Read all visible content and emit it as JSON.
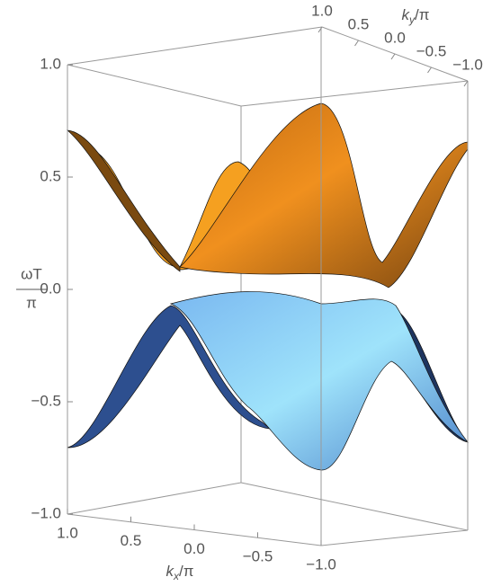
{
  "chart_data": {
    "type": "surface3d",
    "zlabel": {
      "numerator": "ωT",
      "denominator": "π"
    },
    "xlabel": {
      "symbol": "k",
      "subscript": "x",
      "suffix": "/π"
    },
    "ylabel": {
      "symbol": "k",
      "subscript": "y",
      "suffix": "/π"
    },
    "xlim": [
      1,
      -1
    ],
    "xticks": [
      {
        "value": 1,
        "label": "1.0"
      },
      {
        "value": 0.5,
        "label": "0.5"
      },
      {
        "value": 0,
        "label": "0.0"
      },
      {
        "value": -0.5,
        "label": "−0.5"
      },
      {
        "value": -1,
        "label": "−1.0"
      }
    ],
    "ylim": [
      1,
      -1
    ],
    "yticks": [
      {
        "value": 1,
        "label": "1.0"
      },
      {
        "value": 0.5,
        "label": "0.5"
      },
      {
        "value": 0,
        "label": "0.0"
      },
      {
        "value": -0.5,
        "label": "−0.5"
      },
      {
        "value": -1,
        "label": "−1.0"
      }
    ],
    "zlim": [
      -1,
      1
    ],
    "zticks": [
      {
        "value": -1,
        "label": "−1.0"
      },
      {
        "value": -0.5,
        "label": "−0.5"
      },
      {
        "value": 0,
        "label": "0.0"
      },
      {
        "value": 0.5,
        "label": "0.5"
      },
      {
        "value": 1,
        "label": "1.0"
      }
    ]
  }
}
